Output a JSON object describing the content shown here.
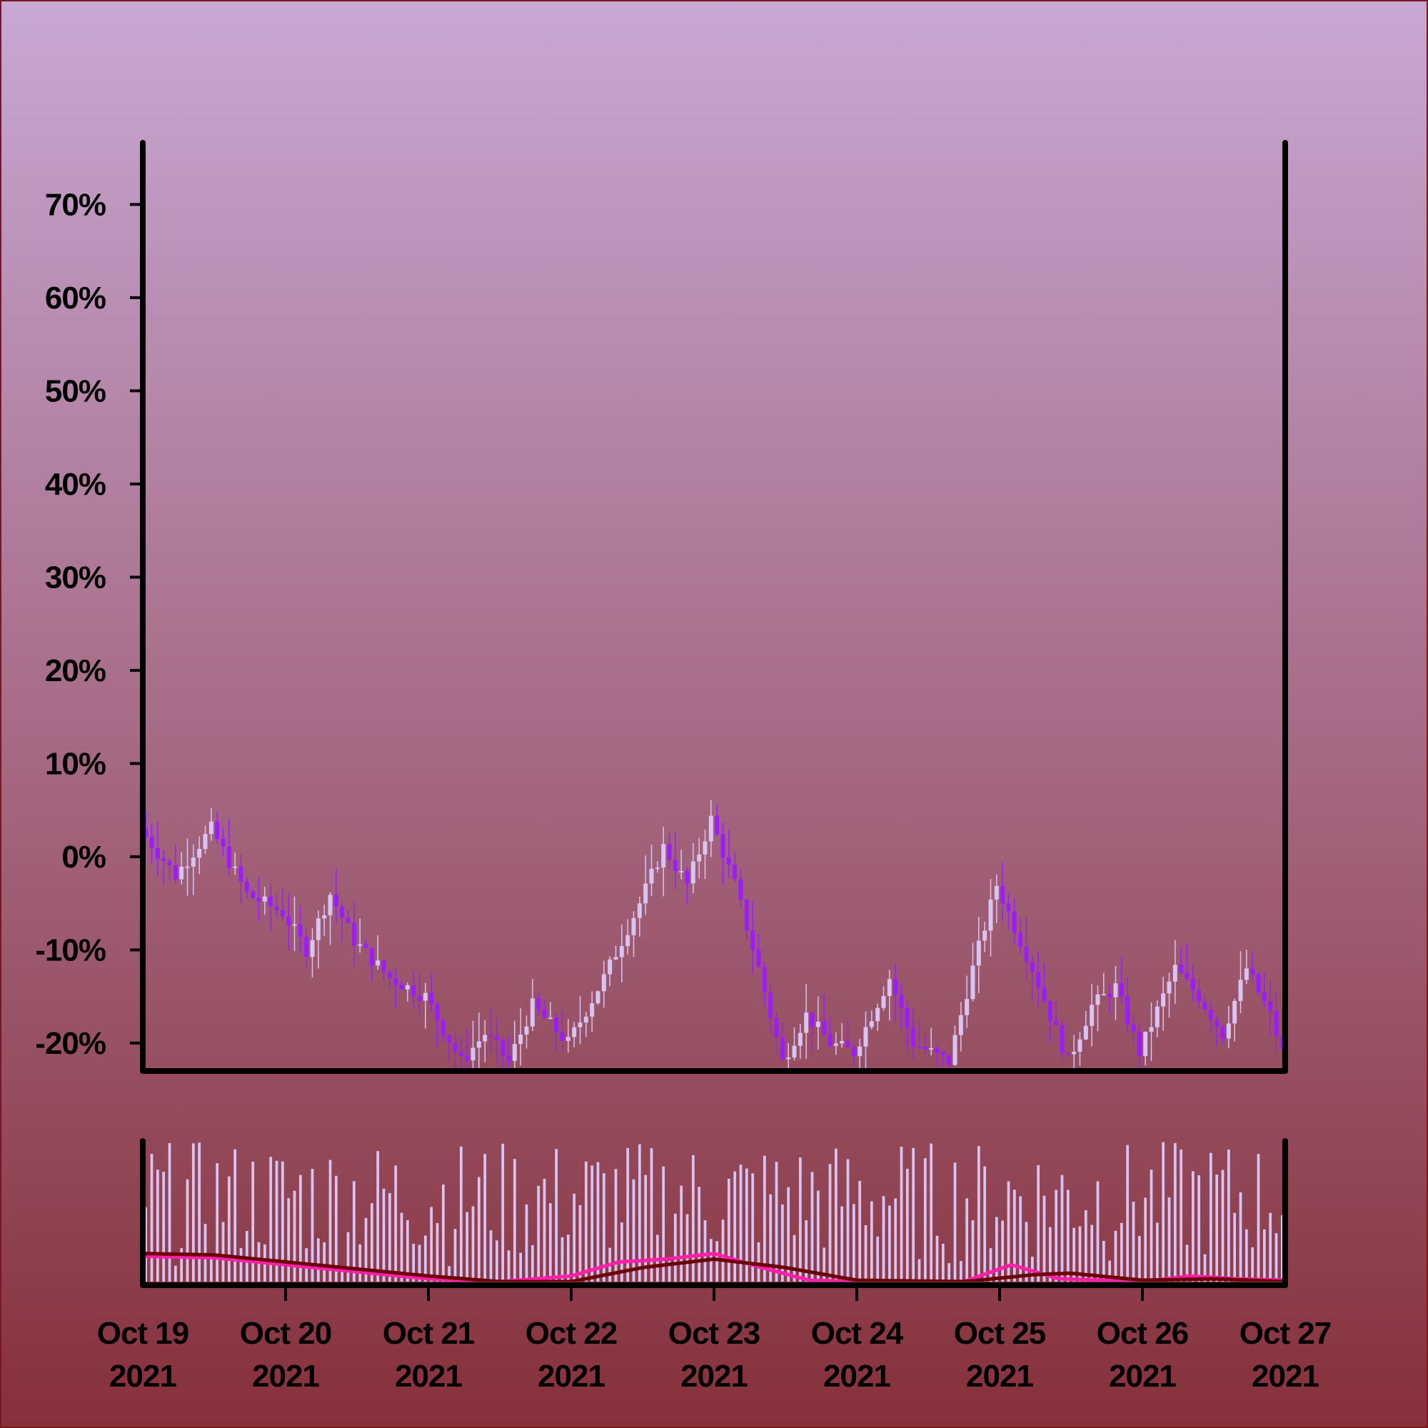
{
  "colors": {
    "background_top": "#c8a8d4",
    "background_bottom": "#86303a",
    "border": "#7a1620",
    "axis": "#000000",
    "candle_up": "#d9c3f0",
    "candle_down": "#9b1cff",
    "volume_bar": "#d9c3f0",
    "ma_fast": "#ff1faa",
    "ma_slow": "#6b0008"
  },
  "chart_data": [
    {
      "type": "candlestick",
      "name": "price-panel",
      "y_axis_format": "percent",
      "ylim": [
        -23,
        77
      ],
      "yticks": [
        -20,
        -10,
        0,
        10,
        20,
        30,
        40,
        50,
        60,
        70
      ],
      "ytick_labels": [
        "-20%",
        "-10%",
        "0%",
        "10%",
        "20%",
        "30%",
        "40%",
        "50%",
        "60%",
        "70%"
      ],
      "xlim": [
        "2021-10-19",
        "2021-10-27"
      ],
      "candle_interval_hours": 1,
      "candle_close_path": [
        {
          "t": "2021-10-19T00:00",
          "v": 3
        },
        {
          "t": "2021-10-19T06:00",
          "v": -2
        },
        {
          "t": "2021-10-19T12:00",
          "v": 3
        },
        {
          "t": "2021-10-19T18:00",
          "v": -4
        },
        {
          "t": "2021-10-20T00:00",
          "v": -6
        },
        {
          "t": "2021-10-20T04:00",
          "v": -10
        },
        {
          "t": "2021-10-20T08:00",
          "v": -4
        },
        {
          "t": "2021-10-20T12:00",
          "v": -9
        },
        {
          "t": "2021-10-20T18:00",
          "v": -13
        },
        {
          "t": "2021-10-21T00:00",
          "v": -15
        },
        {
          "t": "2021-10-21T06:00",
          "v": -22
        },
        {
          "t": "2021-10-21T10:00",
          "v": -19
        },
        {
          "t": "2021-10-21T14:00",
          "v": -22
        },
        {
          "t": "2021-10-21T18:00",
          "v": -16
        },
        {
          "t": "2021-10-22T00:00",
          "v": -20
        },
        {
          "t": "2021-10-22T06:00",
          "v": -13
        },
        {
          "t": "2021-10-22T12:00",
          "v": -5
        },
        {
          "t": "2021-10-22T16:00",
          "v": 1
        },
        {
          "t": "2021-10-22T20:00",
          "v": -3
        },
        {
          "t": "2021-10-23T00:00",
          "v": 4
        },
        {
          "t": "2021-10-23T04:00",
          "v": -3
        },
        {
          "t": "2021-10-23T08:00",
          "v": -12
        },
        {
          "t": "2021-10-23T12:00",
          "v": -22
        },
        {
          "t": "2021-10-23T16:00",
          "v": -17
        },
        {
          "t": "2021-10-23T20:00",
          "v": -20
        },
        {
          "t": "2021-10-24T00:00",
          "v": -21
        },
        {
          "t": "2021-10-24T06:00",
          "v": -13
        },
        {
          "t": "2021-10-24T10:00",
          "v": -20
        },
        {
          "t": "2021-10-24T16:00",
          "v": -22
        },
        {
          "t": "2021-10-24T20:00",
          "v": -12
        },
        {
          "t": "2021-10-25T00:00",
          "v": -3
        },
        {
          "t": "2021-10-25T06:00",
          "v": -12
        },
        {
          "t": "2021-10-25T12:00",
          "v": -22
        },
        {
          "t": "2021-10-25T16:00",
          "v": -16
        },
        {
          "t": "2021-10-25T20:00",
          "v": -14
        },
        {
          "t": "2021-10-26T00:00",
          "v": -21
        },
        {
          "t": "2021-10-26T06:00",
          "v": -12
        },
        {
          "t": "2021-10-26T10:00",
          "v": -15
        },
        {
          "t": "2021-10-26T14:00",
          "v": -19
        },
        {
          "t": "2021-10-26T18:00",
          "v": -12
        },
        {
          "t": "2021-10-26T22:00",
          "v": -17
        },
        {
          "t": "2021-10-27T00:00",
          "v": -21
        }
      ]
    },
    {
      "type": "bar",
      "name": "volume-panel",
      "xlim": [
        "2021-10-19",
        "2021-10-27"
      ],
      "xticks": [
        "2021-10-19",
        "2021-10-20",
        "2021-10-21",
        "2021-10-22",
        "2021-10-23",
        "2021-10-24",
        "2021-10-25",
        "2021-10-26",
        "2021-10-27"
      ],
      "xtick_labels": [
        [
          "Oct 19",
          "2021"
        ],
        [
          "Oct 20",
          "2021"
        ],
        [
          "Oct 21",
          "2021"
        ],
        [
          "Oct 22",
          "2021"
        ],
        [
          "Oct 23",
          "2021"
        ],
        [
          "Oct 24",
          "2021"
        ],
        [
          "Oct 25",
          "2021"
        ],
        [
          "Oct 26",
          "2021"
        ],
        [
          "Oct 27",
          "2021"
        ]
      ],
      "relative_volume_range": [
        0.1,
        1.0
      ],
      "moving_averages": [
        {
          "color_key": "ma_fast",
          "values": [
            {
              "t": "2021-10-19T00:00",
              "v": 0.18
            },
            {
              "t": "2021-10-19T12:00",
              "v": 0.17
            },
            {
              "t": "2021-10-20T00:00",
              "v": 0.12
            },
            {
              "t": "2021-10-20T12:00",
              "v": 0.07
            },
            {
              "t": "2021-10-21T00:00",
              "v": 0.02
            },
            {
              "t": "2021-10-21T12:00",
              "v": 0.0
            },
            {
              "t": "2021-10-22T00:00",
              "v": 0.04
            },
            {
              "t": "2021-10-22T08:00",
              "v": 0.14
            },
            {
              "t": "2021-10-22T16:00",
              "v": 0.16
            },
            {
              "t": "2021-10-23T00:00",
              "v": 0.2
            },
            {
              "t": "2021-10-23T08:00",
              "v": 0.1
            },
            {
              "t": "2021-10-23T16:00",
              "v": 0.01
            },
            {
              "t": "2021-10-24T00:00",
              "v": 0.0
            },
            {
              "t": "2021-10-24T18:00",
              "v": 0.0
            },
            {
              "t": "2021-10-25T02:00",
              "v": 0.12
            },
            {
              "t": "2021-10-25T10:00",
              "v": 0.02
            },
            {
              "t": "2021-10-26T00:00",
              "v": 0.0
            },
            {
              "t": "2021-10-26T08:00",
              "v": 0.04
            },
            {
              "t": "2021-10-26T16:00",
              "v": 0.02
            },
            {
              "t": "2021-10-27T00:00",
              "v": 0.01
            }
          ]
        },
        {
          "color_key": "ma_slow",
          "values": [
            {
              "t": "2021-10-19T00:00",
              "v": 0.2
            },
            {
              "t": "2021-10-19T12:00",
              "v": 0.19
            },
            {
              "t": "2021-10-20T00:00",
              "v": 0.14
            },
            {
              "t": "2021-10-20T12:00",
              "v": 0.09
            },
            {
              "t": "2021-10-21T00:00",
              "v": 0.04
            },
            {
              "t": "2021-10-21T12:00",
              "v": 0.0
            },
            {
              "t": "2021-10-22T00:00",
              "v": 0.0
            },
            {
              "t": "2021-10-22T12:00",
              "v": 0.1
            },
            {
              "t": "2021-10-23T00:00",
              "v": 0.16
            },
            {
              "t": "2021-10-23T12:00",
              "v": 0.1
            },
            {
              "t": "2021-10-24T00:00",
              "v": 0.01
            },
            {
              "t": "2021-10-24T18:00",
              "v": 0.0
            },
            {
              "t": "2021-10-25T06:00",
              "v": 0.05
            },
            {
              "t": "2021-10-25T12:00",
              "v": 0.06
            },
            {
              "t": "2021-10-26T00:00",
              "v": 0.01
            },
            {
              "t": "2021-10-26T12:00",
              "v": 0.02
            },
            {
              "t": "2021-10-27T00:00",
              "v": 0.0
            }
          ]
        }
      ]
    }
  ]
}
